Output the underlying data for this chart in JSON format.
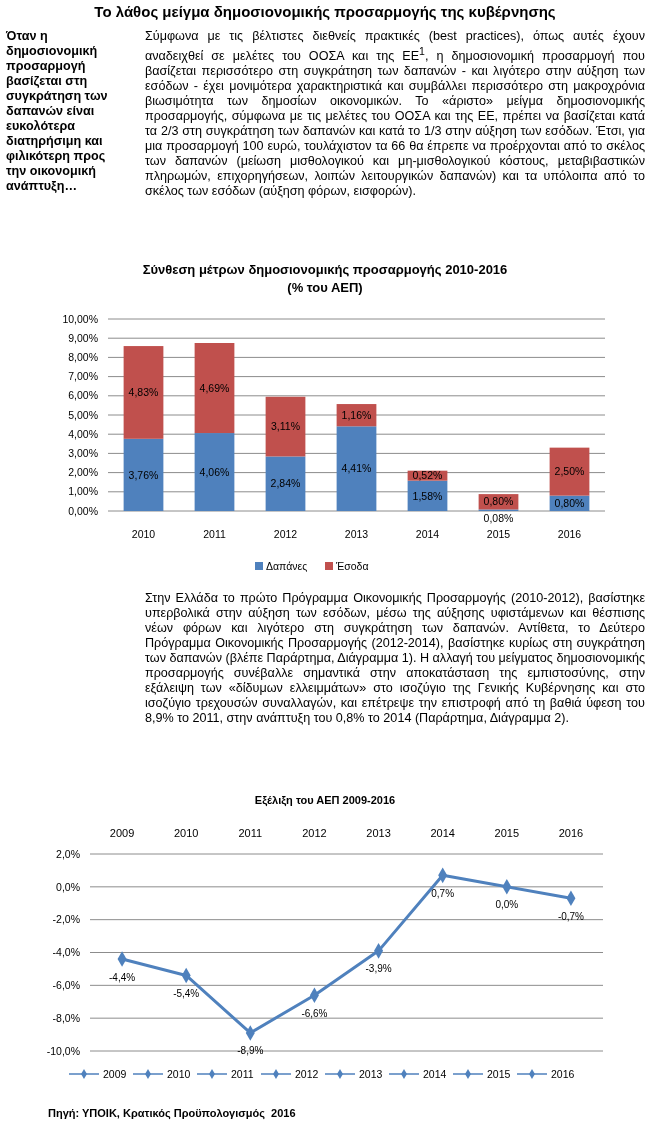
{
  "chart_data": [
    {
      "type": "bar",
      "stacked": true,
      "title": "Σύνθεση μέτρων δημοσιονομικής προσαρμογής 2010-2016\n(% του ΑΕΠ)",
      "annotations": [
        "Το λάθος μείγμα δημοσιονομικής προσαρμογής της κυβέρνησης",
        "Όταν η δημοσιονομική προσαρμογή βασίζεται στη συγκράτηση των δαπανών είναι ευκολότερα διατηρήσιμη και φιλικότερη προς την οικονομική ανάπτυξη…",
        "Σύμφωνα με τις βέλτιστες διεθνείς πρακτικές (best practices), όπως αυτές έχουν αναδειχθεί σε μελέτες του ΟΟΣΑ και της ΕΕ$^{1}$, η δημοσιονομική προσαρμογή που βασίζεται περισσότερο στη συγκράτηση των δαπανών - και λιγότερο στην αύξηση των εσόδων - έχει μονιμότερα χαρακτηριστικά και συμβάλλει περισσότερο στη μακροχρόνια βιωσιμότητα των δημοσίων οικονομικών. Το «άριστο» μείγμα δημοσιονομικής προσαρμογής, σύμφωνα με τις μελέτες του ΟΟΣΑ και της ΕΕ, πρέπει να βασίζεται κατά τα 2/3 στη συγκράτηση των δαπανών και κατά το 1/3 στην αύξηση των εσόδων. Έτσι, για μια προσαρμογή 100 ευρώ, τουλάχιστον τα 66 θα έπρεπε να προέρχονται από το σκέλος των δαπανών (μείωση μισθολογικού και μη-μισθολογικού κόστους, μεταβιβαστικών πληρωμών, επιχορηγήσεων, λοιπών λειτουργικών δαπανών) και τα υπόλοιπα από το σκέλος των εσόδων (αύξηση φόρων, εισφορών)."
      ],
      "categories": [
        "2010",
        "2011",
        "2012",
        "2013",
        "2014",
        "2015",
        "2016"
      ],
      "series": [
        {
          "name": "Δαπάνες",
          "color": "#4f81bd",
          "values": [
            3.76,
            4.06,
            2.84,
            4.41,
            1.58,
            0.08,
            0.8
          ],
          "value_labels": [
            "3,76%",
            "4,06%",
            "2,84%",
            "4,41%",
            "1,58%",
            "0,08%",
            "0,80%"
          ]
        },
        {
          "name": "Έσοδα",
          "color": "#c0504d",
          "values": [
            4.83,
            4.69,
            3.11,
            1.16,
            0.52,
            0.8,
            2.5
          ],
          "value_labels": [
            "4,83%",
            "4,69%",
            "3,11%",
            "1,16%",
            "0,52%",
            "0,80%",
            "2,50%"
          ]
        }
      ],
      "ylim": [
        0,
        10
      ],
      "yticks": [
        {
          "value": 0,
          "label": "0,00%"
        },
        {
          "value": 1,
          "label": "1,00%"
        },
        {
          "value": 2,
          "label": "2,00%"
        },
        {
          "value": 3,
          "label": "3,00%"
        },
        {
          "value": 4,
          "label": "4,00%"
        },
        {
          "value": 5,
          "label": "5,00%"
        },
        {
          "value": 6,
          "label": "6,00%"
        },
        {
          "value": 7,
          "label": "7,00%"
        },
        {
          "value": 8,
          "label": "8,00%"
        },
        {
          "value": 9,
          "label": "9,00%"
        },
        {
          "value": 10,
          "label": "10,00%"
        }
      ],
      "grid": "y",
      "legend": "bottom"
    },
    {
      "type": "line",
      "title": "Εξέλιξη του ΑΕΠ 2009-2016",
      "annotations": [
        "Στην Ελλάδα το πρώτο Πρόγραμμα Οικονομικής Προσαρμογής (2010-2012), βασίστηκε υπερβολικά στην αύξηση των εσόδων, μέσω της αύξησης υφιστάμενων και θέσπισης νέων φόρων και λιγότερο στη συγκράτηση των δαπανών. Αντίθετα, το Δεύτερο Πρόγραμμα Οικονομικής Προσαρμογής (2012-2014), βασίστηκε κυρίως στη συγκράτηση των δαπανών (βλέπε Παράρτημα, Διάγραμμα 1). Η αλλαγή του μείγματος δημοσιονομικής προσαρμογής συνέβαλλε σημαντικά στην αποκατάσταση της εμπιστοσύνης, στην εξάλειψη των «δίδυμων ελλειμμάτων» στο ισοζύγιο της Γενικής Κυβέρνησης και στο ισοζύγιο τρεχουσών συναλλαγών, και επέτρεψε την επιστροφή από τη βαθιά ύφεση του 8,9% το 2011, στην ανάπτυξη του 0,8% το 2014 (Παράρτημα, Διάγραμμα 2).",
        "Πηγή: ΥΠΟΙΚ, Κρατικός Προϋπολογισμός  2016"
      ],
      "categories": [
        "2009",
        "2010",
        "2011",
        "2012",
        "2013",
        "2014",
        "2015",
        "2016"
      ],
      "series": [
        {
          "color": "#4f81bd",
          "values": [
            -4.4,
            -5.4,
            -8.9,
            -6.6,
            -3.9,
            0.7,
            0.0,
            -0.7
          ],
          "value_labels": [
            "-4,4%",
            "-5,4%",
            "-8,9%",
            "-6,6%",
            "-3,9%",
            "0,7%",
            "0,0%",
            "-0,7%"
          ]
        }
      ],
      "ylim": [
        -10,
        2
      ],
      "yticks": [
        {
          "value": -10,
          "label": "-10,0%"
        },
        {
          "value": -8,
          "label": "-8,0%"
        },
        {
          "value": -6,
          "label": "-6,0%"
        },
        {
          "value": -4,
          "label": "-4,0%"
        },
        {
          "value": -2,
          "label": "-2,0%"
        },
        {
          "value": 0,
          "label": "0,0%"
        },
        {
          "value": 2,
          "label": "2,0%"
        }
      ],
      "grid": "y",
      "marker": "diamond",
      "line_style": "solid"
    }
  ]
}
